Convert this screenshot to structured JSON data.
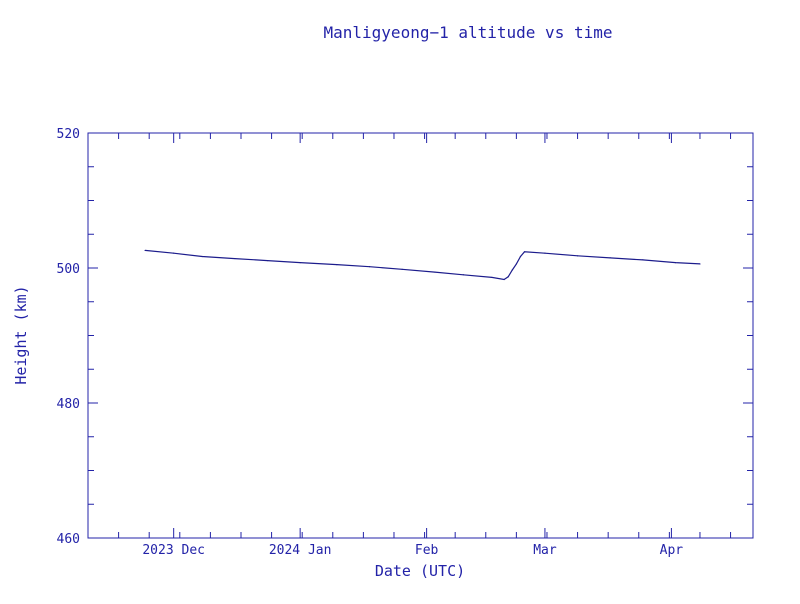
{
  "chart_data": {
    "type": "line",
    "title": "Manligyeong−1 altitude vs time",
    "xlabel": "Date (UTC)",
    "ylabel": "Height (km)",
    "ylim": [
      460,
      520
    ],
    "y_ticks": [
      460,
      480,
      500,
      520
    ],
    "xlim": [
      "2023-11-10",
      "2024-04-21"
    ],
    "x_ticks": [
      {
        "date": "2023-12-01",
        "label": "2023 Dec"
      },
      {
        "date": "2024-01-01",
        "label": "2024 Jan"
      },
      {
        "date": "2024-02-01",
        "label": "Feb"
      },
      {
        "date": "2024-03-01",
        "label": "Mar"
      },
      {
        "date": "2024-04-01",
        "label": "Apr"
      }
    ],
    "grid": false,
    "colors": {
      "line": "#1c1c8c",
      "axis": "#2323a8",
      "text": "#2323a8"
    },
    "series": [
      {
        "x": [
          "2023-11-24",
          "2023-12-01",
          "2023-12-08",
          "2023-12-16",
          "2023-12-24",
          "2024-01-01",
          "2024-01-10",
          "2024-01-18",
          "2024-01-26",
          "2024-02-03",
          "2024-02-10",
          "2024-02-17",
          "2024-02-20",
          "2024-02-21",
          "2024-02-22",
          "2024-02-23",
          "2024-02-24",
          "2024-02-25",
          "2024-03-01",
          "2024-03-09",
          "2024-03-17",
          "2024-03-25",
          "2024-04-02",
          "2024-04-08"
        ],
        "y": [
          502.6,
          502.2,
          501.7,
          501.4,
          501.1,
          500.8,
          500.5,
          500.2,
          499.8,
          499.4,
          499.0,
          498.6,
          498.3,
          498.7,
          499.7,
          500.6,
          501.7,
          502.4,
          502.2,
          501.8,
          501.5,
          501.2,
          500.8,
          500.6
        ]
      }
    ]
  }
}
